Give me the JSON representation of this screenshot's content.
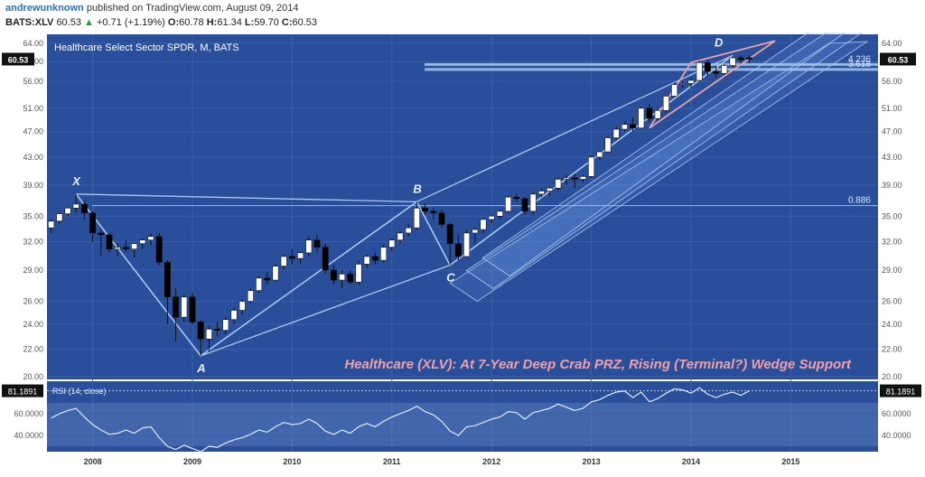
{
  "header": {
    "author": "andrewunknown",
    "published_text": "published on TradingView.com, August 09, 2014",
    "symbol": "BATS:XLV",
    "last": "60.53",
    "change": "+0.71 (+1.19%)",
    "ohlc": [
      {
        "label": "O:",
        "value": "60.78"
      },
      {
        "label": "H:",
        "value": "61.34"
      },
      {
        "label": "L:",
        "value": "59.70"
      },
      {
        "label": "C:",
        "value": "60.53"
      }
    ]
  },
  "colors": {
    "background": "#2a4f9a",
    "up_candle": "#ffffff",
    "down_candle": "#000000",
    "pattern_lines": "#a8c8f0",
    "wedge": "#e8a0a8",
    "annotation": "#f0a0a8"
  },
  "chart_data": [
    {
      "type": "candlestick",
      "title": "Healthcare Select Sector SPDR, M, BATS",
      "annotation": "Healthcare (XLV): At 7-Year Deep Crab PRZ, Rising (Terminal?) Wedge Support",
      "last_price_label": "60.53",
      "y_scale": "log",
      "ylim": [
        19.8,
        66
      ],
      "y_ticks": [
        "64.00",
        "60.00",
        "56.00",
        "51.00",
        "47.00",
        "43.00",
        "39.00",
        "35.00",
        "32.00",
        "29.00",
        "26.00",
        "24.00",
        "22.00",
        "20.00"
      ],
      "x_ticks": [
        "2008",
        "2009",
        "2010",
        "2011",
        "2012",
        "2013",
        "2014",
        "2015"
      ],
      "pattern_points": [
        {
          "label": "X",
          "date": "2007-11",
          "price": 37.8
        },
        {
          "label": "A",
          "date": "2009-02",
          "price": 21.5
        },
        {
          "label": "B",
          "date": "2011-04",
          "price": 36.8
        },
        {
          "label": "C",
          "date": "2011-08",
          "price": 29.5
        },
        {
          "label": "D",
          "date": "2014-06",
          "price": 61.3
        }
      ],
      "fib_levels": [
        {
          "label": "0.886",
          "price": 36.3
        },
        {
          "label": "4.236",
          "price": 59.4
        },
        {
          "label": "3.618",
          "price": 58.4
        }
      ],
      "candles": [
        {
          "d": "2007-08",
          "o": 33.6,
          "h": 34.6,
          "l": 33.0,
          "c": 34.4
        },
        {
          "d": "2007-09",
          "o": 34.4,
          "h": 35.5,
          "l": 34.1,
          "c": 35.3
        },
        {
          "d": "2007-10",
          "o": 35.3,
          "h": 36.2,
          "l": 35.0,
          "c": 36.0
        },
        {
          "d": "2007-11",
          "o": 36.0,
          "h": 37.8,
          "l": 35.4,
          "c": 36.5
        },
        {
          "d": "2007-12",
          "o": 36.5,
          "h": 37.0,
          "l": 34.6,
          "c": 35.4
        },
        {
          "d": "2008-01",
          "o": 35.4,
          "h": 35.6,
          "l": 32.0,
          "c": 33.0
        },
        {
          "d": "2008-02",
          "o": 33.0,
          "h": 33.4,
          "l": 30.5,
          "c": 32.8
        },
        {
          "d": "2008-03",
          "o": 32.8,
          "h": 33.0,
          "l": 30.8,
          "c": 31.2
        },
        {
          "d": "2008-04",
          "o": 31.2,
          "h": 31.8,
          "l": 30.4,
          "c": 31.4
        },
        {
          "d": "2008-05",
          "o": 31.4,
          "h": 32.2,
          "l": 31.0,
          "c": 31.2
        },
        {
          "d": "2008-06",
          "o": 31.2,
          "h": 31.6,
          "l": 30.3,
          "c": 31.8
        },
        {
          "d": "2008-07",
          "o": 31.8,
          "h": 32.4,
          "l": 31.2,
          "c": 32.2
        },
        {
          "d": "2008-08",
          "o": 32.2,
          "h": 33.0,
          "l": 31.6,
          "c": 32.6
        },
        {
          "d": "2008-09",
          "o": 32.6,
          "h": 33.0,
          "l": 29.5,
          "c": 29.8
        },
        {
          "d": "2008-10",
          "o": 29.8,
          "h": 30.0,
          "l": 24.0,
          "c": 26.4
        },
        {
          "d": "2008-11",
          "o": 26.4,
          "h": 27.2,
          "l": 22.6,
          "c": 24.6
        },
        {
          "d": "2008-12",
          "o": 24.6,
          "h": 26.6,
          "l": 24.2,
          "c": 26.4
        },
        {
          "d": "2009-01",
          "o": 26.4,
          "h": 26.8,
          "l": 24.0,
          "c": 24.2
        },
        {
          "d": "2009-02",
          "o": 24.2,
          "h": 24.4,
          "l": 21.5,
          "c": 22.8
        },
        {
          "d": "2009-03",
          "o": 22.8,
          "h": 23.9,
          "l": 21.8,
          "c": 23.6
        },
        {
          "d": "2009-04",
          "o": 23.6,
          "h": 24.2,
          "l": 23.0,
          "c": 23.5
        },
        {
          "d": "2009-05",
          "o": 23.5,
          "h": 24.6,
          "l": 23.2,
          "c": 24.4
        },
        {
          "d": "2009-06",
          "o": 24.4,
          "h": 25.4,
          "l": 24.0,
          "c": 25.2
        },
        {
          "d": "2009-07",
          "o": 25.2,
          "h": 26.2,
          "l": 24.8,
          "c": 26.0
        },
        {
          "d": "2009-08",
          "o": 26.0,
          "h": 27.2,
          "l": 25.8,
          "c": 27.0
        },
        {
          "d": "2009-09",
          "o": 27.0,
          "h": 28.4,
          "l": 26.8,
          "c": 28.2
        },
        {
          "d": "2009-10",
          "o": 28.2,
          "h": 28.8,
          "l": 27.6,
          "c": 28.0
        },
        {
          "d": "2009-11",
          "o": 28.0,
          "h": 29.6,
          "l": 27.8,
          "c": 29.4
        },
        {
          "d": "2009-12",
          "o": 29.4,
          "h": 30.6,
          "l": 29.0,
          "c": 30.4
        },
        {
          "d": "2010-01",
          "o": 30.4,
          "h": 31.2,
          "l": 29.6,
          "c": 30.2
        },
        {
          "d": "2010-02",
          "o": 30.2,
          "h": 30.9,
          "l": 29.6,
          "c": 30.8
        },
        {
          "d": "2010-03",
          "o": 30.8,
          "h": 32.6,
          "l": 30.4,
          "c": 32.2
        },
        {
          "d": "2010-04",
          "o": 32.2,
          "h": 32.8,
          "l": 30.8,
          "c": 31.4
        },
        {
          "d": "2010-05",
          "o": 31.4,
          "h": 31.8,
          "l": 28.6,
          "c": 29.0
        },
        {
          "d": "2010-06",
          "o": 29.0,
          "h": 29.6,
          "l": 27.6,
          "c": 28.0
        },
        {
          "d": "2010-07",
          "o": 28.0,
          "h": 29.0,
          "l": 27.2,
          "c": 28.6
        },
        {
          "d": "2010-08",
          "o": 28.6,
          "h": 29.0,
          "l": 27.6,
          "c": 27.8
        },
        {
          "d": "2010-09",
          "o": 27.8,
          "h": 30.0,
          "l": 27.6,
          "c": 29.6
        },
        {
          "d": "2010-10",
          "o": 29.6,
          "h": 30.6,
          "l": 29.2,
          "c": 30.4
        },
        {
          "d": "2010-11",
          "o": 30.4,
          "h": 30.8,
          "l": 29.6,
          "c": 30.0
        },
        {
          "d": "2010-12",
          "o": 30.0,
          "h": 31.6,
          "l": 29.8,
          "c": 31.4
        },
        {
          "d": "2011-01",
          "o": 31.4,
          "h": 32.4,
          "l": 31.0,
          "c": 32.2
        },
        {
          "d": "2011-02",
          "o": 32.2,
          "h": 33.2,
          "l": 31.8,
          "c": 33.0
        },
        {
          "d": "2011-03",
          "o": 33.0,
          "h": 34.0,
          "l": 32.6,
          "c": 33.6
        },
        {
          "d": "2011-04",
          "o": 33.6,
          "h": 36.8,
          "l": 33.4,
          "c": 36.0
        },
        {
          "d": "2011-05",
          "o": 36.0,
          "h": 36.6,
          "l": 35.2,
          "c": 35.6
        },
        {
          "d": "2011-06",
          "o": 35.6,
          "h": 36.0,
          "l": 34.6,
          "c": 35.4
        },
        {
          "d": "2011-07",
          "o": 35.4,
          "h": 35.8,
          "l": 33.6,
          "c": 34.0
        },
        {
          "d": "2011-08",
          "o": 34.0,
          "h": 34.2,
          "l": 29.5,
          "c": 31.8
        },
        {
          "d": "2011-09",
          "o": 31.8,
          "h": 32.8,
          "l": 30.0,
          "c": 30.4
        },
        {
          "d": "2011-10",
          "o": 30.4,
          "h": 33.4,
          "l": 30.2,
          "c": 33.0
        },
        {
          "d": "2011-11",
          "o": 33.0,
          "h": 33.6,
          "l": 31.8,
          "c": 33.4
        },
        {
          "d": "2011-12",
          "o": 33.4,
          "h": 34.8,
          "l": 33.0,
          "c": 34.6
        },
        {
          "d": "2012-01",
          "o": 34.6,
          "h": 35.2,
          "l": 34.2,
          "c": 35.0
        },
        {
          "d": "2012-02",
          "o": 35.0,
          "h": 35.8,
          "l": 34.6,
          "c": 35.6
        },
        {
          "d": "2012-03",
          "o": 35.6,
          "h": 37.6,
          "l": 35.4,
          "c": 37.4
        },
        {
          "d": "2012-04",
          "o": 37.4,
          "h": 37.8,
          "l": 36.8,
          "c": 37.2
        },
        {
          "d": "2012-05",
          "o": 37.2,
          "h": 37.4,
          "l": 35.2,
          "c": 35.6
        },
        {
          "d": "2012-06",
          "o": 35.6,
          "h": 38.0,
          "l": 35.2,
          "c": 37.8
        },
        {
          "d": "2012-07",
          "o": 37.8,
          "h": 38.6,
          "l": 37.4,
          "c": 38.2
        },
        {
          "d": "2012-08",
          "o": 38.2,
          "h": 38.8,
          "l": 37.6,
          "c": 38.6
        },
        {
          "d": "2012-09",
          "o": 38.6,
          "h": 40.0,
          "l": 38.2,
          "c": 39.8
        },
        {
          "d": "2012-10",
          "o": 39.8,
          "h": 40.4,
          "l": 39.0,
          "c": 40.0
        },
        {
          "d": "2012-11",
          "o": 40.0,
          "h": 40.6,
          "l": 38.6,
          "c": 39.8
        },
        {
          "d": "2012-12",
          "o": 39.8,
          "h": 40.4,
          "l": 39.4,
          "c": 40.2
        },
        {
          "d": "2013-01",
          "o": 40.2,
          "h": 43.2,
          "l": 40.0,
          "c": 43.0
        },
        {
          "d": "2013-02",
          "o": 43.0,
          "h": 44.0,
          "l": 42.6,
          "c": 43.8
        },
        {
          "d": "2013-03",
          "o": 43.8,
          "h": 46.2,
          "l": 43.6,
          "c": 46.0
        },
        {
          "d": "2013-04",
          "o": 46.0,
          "h": 47.8,
          "l": 45.6,
          "c": 47.4
        },
        {
          "d": "2013-05",
          "o": 47.4,
          "h": 48.6,
          "l": 47.0,
          "c": 48.2
        },
        {
          "d": "2013-06",
          "o": 48.2,
          "h": 49.4,
          "l": 47.0,
          "c": 47.6
        },
        {
          "d": "2013-07",
          "o": 47.6,
          "h": 51.2,
          "l": 47.4,
          "c": 51.0
        },
        {
          "d": "2013-08",
          "o": 51.0,
          "h": 51.8,
          "l": 48.6,
          "c": 49.2
        },
        {
          "d": "2013-09",
          "o": 49.2,
          "h": 51.0,
          "l": 49.0,
          "c": 50.6
        },
        {
          "d": "2013-10",
          "o": 50.6,
          "h": 53.4,
          "l": 50.2,
          "c": 53.2
        },
        {
          "d": "2013-11",
          "o": 53.2,
          "h": 55.8,
          "l": 53.0,
          "c": 55.4
        },
        {
          "d": "2013-12",
          "o": 55.4,
          "h": 56.0,
          "l": 54.8,
          "c": 55.6
        },
        {
          "d": "2014-01",
          "o": 55.6,
          "h": 56.8,
          "l": 54.8,
          "c": 56.2
        },
        {
          "d": "2014-02",
          "o": 56.2,
          "h": 60.2,
          "l": 56.0,
          "c": 59.8
        },
        {
          "d": "2014-03",
          "o": 59.8,
          "h": 60.4,
          "l": 57.0,
          "c": 58.0
        },
        {
          "d": "2014-04",
          "o": 58.0,
          "h": 59.0,
          "l": 56.8,
          "c": 57.6
        },
        {
          "d": "2014-05",
          "o": 57.6,
          "h": 59.6,
          "l": 57.2,
          "c": 59.2
        },
        {
          "d": "2014-06",
          "o": 59.2,
          "h": 61.0,
          "l": 58.8,
          "c": 60.8
        },
        {
          "d": "2014-07",
          "o": 60.8,
          "h": 61.3,
          "l": 59.6,
          "c": 60.4
        },
        {
          "d": "2014-08",
          "o": 60.8,
          "h": 61.34,
          "l": 59.7,
          "c": 60.53
        }
      ]
    },
    {
      "type": "line",
      "title": "RSI (14, close)",
      "last_value_label": "81.1891",
      "ylim": [
        25,
        90
      ],
      "y_ticks": [
        "60.0000",
        "40.0000"
      ],
      "band": [
        30,
        70
      ],
      "x": [
        "2007-08",
        "2007-09",
        "2007-10",
        "2007-11",
        "2007-12",
        "2008-01",
        "2008-02",
        "2008-03",
        "2008-04",
        "2008-05",
        "2008-06",
        "2008-07",
        "2008-08",
        "2008-09",
        "2008-10",
        "2008-11",
        "2008-12",
        "2009-01",
        "2009-02",
        "2009-03",
        "2009-04",
        "2009-05",
        "2009-06",
        "2009-07",
        "2009-08",
        "2009-09",
        "2009-10",
        "2009-11",
        "2009-12",
        "2010-01",
        "2010-02",
        "2010-03",
        "2010-04",
        "2010-05",
        "2010-06",
        "2010-07",
        "2010-08",
        "2010-09",
        "2010-10",
        "2010-11",
        "2010-12",
        "2011-01",
        "2011-02",
        "2011-03",
        "2011-04",
        "2011-05",
        "2011-06",
        "2011-07",
        "2011-08",
        "2011-09",
        "2011-10",
        "2011-11",
        "2011-12",
        "2012-01",
        "2012-02",
        "2012-03",
        "2012-04",
        "2012-05",
        "2012-06",
        "2012-07",
        "2012-08",
        "2012-09",
        "2012-10",
        "2012-11",
        "2012-12",
        "2013-01",
        "2013-02",
        "2013-03",
        "2013-04",
        "2013-05",
        "2013-06",
        "2013-07",
        "2013-08",
        "2013-09",
        "2013-10",
        "2013-11",
        "2013-12",
        "2014-01",
        "2014-02",
        "2014-03",
        "2014-04",
        "2014-05",
        "2014-06",
        "2014-07",
        "2014-08"
      ],
      "values": [
        56,
        60,
        63,
        65,
        57,
        50,
        45,
        41,
        42,
        45,
        42,
        47,
        48,
        38,
        30,
        27,
        31,
        28,
        25,
        30,
        29,
        33,
        36,
        38,
        41,
        45,
        43,
        48,
        52,
        50,
        51,
        55,
        51,
        44,
        41,
        45,
        42,
        48,
        51,
        48,
        53,
        57,
        60,
        63,
        67,
        62,
        59,
        53,
        44,
        40,
        48,
        49,
        52,
        55,
        57,
        62,
        61,
        55,
        61,
        63,
        65,
        69,
        66,
        63,
        65,
        71,
        73,
        77,
        80,
        81,
        75,
        80,
        71,
        74,
        79,
        83,
        82,
        79,
        84,
        78,
        75,
        78,
        80,
        77,
        81.19
      ]
    }
  ]
}
